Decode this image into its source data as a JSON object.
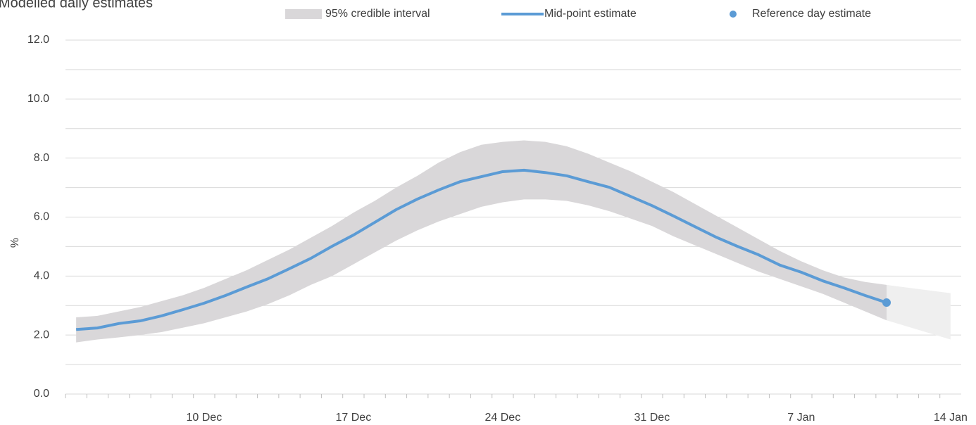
{
  "chart_data": {
    "type": "line",
    "title": "Modelled daily estimates",
    "y_label": "%",
    "x": [
      4,
      5,
      6,
      7,
      8,
      9,
      10,
      11,
      12,
      13,
      14,
      15,
      16,
      17,
      18,
      19,
      20,
      21,
      22,
      23,
      24,
      25,
      26,
      27,
      28,
      29,
      30,
      31,
      32,
      33,
      34,
      35,
      36,
      37,
      38,
      39,
      40,
      41,
      42
    ],
    "xlim": [
      3.5,
      45.5
    ],
    "xticks": [
      {
        "value": 10,
        "label": "10 Dec"
      },
      {
        "value": 17,
        "label": "17 Dec"
      },
      {
        "value": 24,
        "label": "24 Dec"
      },
      {
        "value": 31,
        "label": "31 Dec"
      },
      {
        "value": 38,
        "label": "7 Jan"
      },
      {
        "value": 45,
        "label": "14 Jan"
      }
    ],
    "ylim": [
      0,
      12
    ],
    "yticks": [
      {
        "value": 0,
        "label": "0.0"
      },
      {
        "value": 2,
        "label": "2.0"
      },
      {
        "value": 4,
        "label": "4.0"
      },
      {
        "value": 6,
        "label": "6.0"
      },
      {
        "value": 8,
        "label": "8.0"
      },
      {
        "value": 10,
        "label": "10.0"
      },
      {
        "value": 12,
        "label": "12.0"
      }
    ],
    "y_minor_ticks": [
      1,
      3,
      5,
      7,
      9,
      11
    ],
    "grid": true,
    "band": {
      "name": "95% credible interval",
      "color": "#d9d7d9",
      "upper": [
        2.6,
        2.65,
        2.8,
        2.95,
        3.15,
        3.35,
        3.6,
        3.9,
        4.2,
        4.55,
        4.9,
        5.3,
        5.7,
        6.15,
        6.55,
        7.0,
        7.4,
        7.85,
        8.2,
        8.45,
        8.55,
        8.6,
        8.55,
        8.4,
        8.15,
        7.85,
        7.55,
        7.2,
        6.85,
        6.45,
        6.05,
        5.65,
        5.25,
        4.85,
        4.5,
        4.2,
        3.95,
        3.8,
        3.7
      ],
      "lower": [
        1.75,
        1.85,
        1.92,
        2.0,
        2.1,
        2.25,
        2.4,
        2.6,
        2.8,
        3.05,
        3.35,
        3.7,
        4.0,
        4.4,
        4.8,
        5.2,
        5.55,
        5.85,
        6.1,
        6.35,
        6.5,
        6.6,
        6.6,
        6.55,
        6.4,
        6.2,
        5.95,
        5.7,
        5.35,
        5.05,
        4.75,
        4.45,
        4.15,
        3.9,
        3.65,
        3.4,
        3.1,
        2.8,
        2.5
      ]
    },
    "projection": {
      "color": "#efefef",
      "x": [
        42,
        45
      ],
      "upper": [
        3.7,
        3.42
      ],
      "lower": [
        2.5,
        1.85
      ]
    },
    "series": [
      {
        "name": "Mid-point estimate",
        "color": "#5b9bd5",
        "values": [
          2.19,
          2.24,
          2.39,
          2.48,
          2.65,
          2.86,
          3.08,
          3.34,
          3.63,
          3.91,
          4.25,
          4.6,
          5.01,
          5.39,
          5.82,
          6.25,
          6.61,
          6.92,
          7.2,
          7.37,
          7.54,
          7.59,
          7.51,
          7.4,
          7.2,
          7.01,
          6.7,
          6.39,
          6.04,
          5.68,
          5.32,
          5.01,
          4.72,
          4.37,
          4.13,
          3.84,
          3.6,
          3.34,
          3.1
        ]
      }
    ],
    "reference": {
      "name": "Reference day estimate",
      "color": "#5b9bd5",
      "x": 42,
      "value": 3.1
    }
  }
}
